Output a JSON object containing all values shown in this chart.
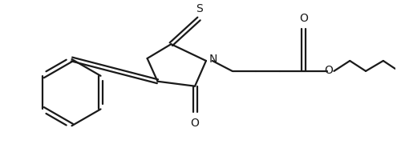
{
  "bg_color": "#ffffff",
  "line_color": "#1a1a1a",
  "line_width": 1.6,
  "figsize": [
    4.95,
    1.8
  ],
  "dpi": 100,
  "S_label": "S",
  "O_label_top": "O",
  "O_label_ester": "O",
  "N_label": "N",
  "S_thioxo_label": "S"
}
